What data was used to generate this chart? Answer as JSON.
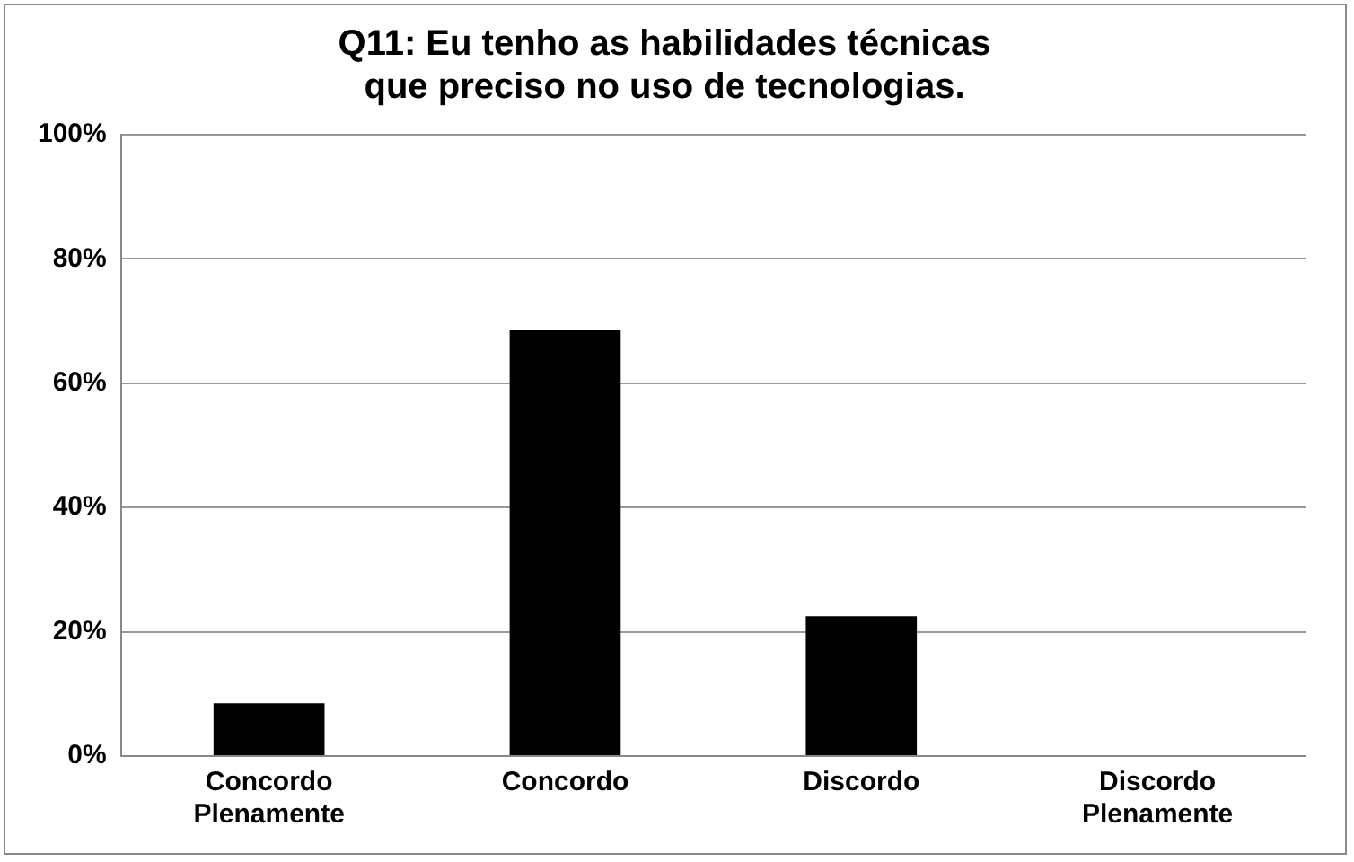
{
  "chart_data": {
    "type": "bar",
    "title": "Q11: Eu tenho as habilidades técnicas que preciso no uso de tecnologias.",
    "categories": [
      "Concordo Plenamente",
      "Concordo",
      "Discordo",
      "Discordo Plenamente"
    ],
    "values": [
      8.5,
      68.5,
      22.5,
      0
    ],
    "color": "#000000",
    "ylim": [
      0,
      100
    ],
    "yticks": [
      {
        "value": 0,
        "label": "0%"
      },
      {
        "value": 20,
        "label": "20%"
      },
      {
        "value": 40,
        "label": "40%"
      },
      {
        "value": 60,
        "label": "60%"
      },
      {
        "value": 80,
        "label": "80%"
      },
      {
        "value": 100,
        "label": "100%"
      }
    ],
    "grid": "y",
    "legend": false
  }
}
